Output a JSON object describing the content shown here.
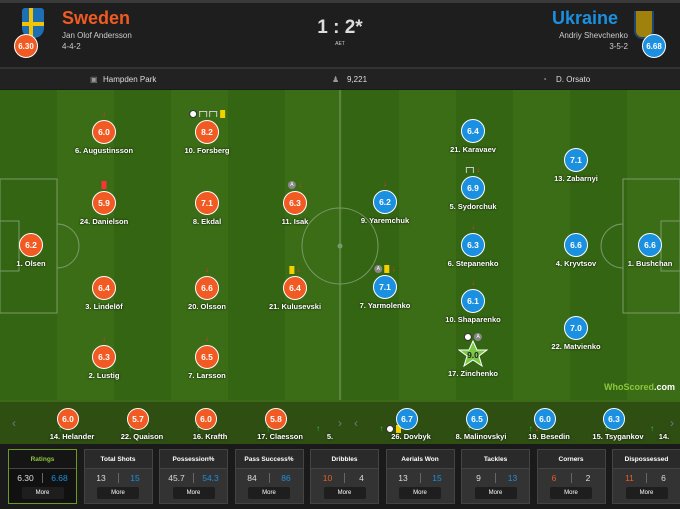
{
  "colors": {
    "home": "#f15a22",
    "away": "#1b8fe0",
    "motm": "#7ac943",
    "positive": "#f15a22",
    "ukraine_stat": "#1b8fe0"
  },
  "match": {
    "score": "1 : 2*",
    "note": "AET"
  },
  "home": {
    "name": "Sweden",
    "manager": "Jan Olof Andersson",
    "formation": "4-4-2",
    "rating": "6.30"
  },
  "away": {
    "name": "Ukraine",
    "manager": "Andriy Shevchenko",
    "formation": "3-5-2",
    "rating": "6.68"
  },
  "info": {
    "venue": "Hampden Park",
    "attendance": "9,221",
    "referee": "D. Orsato",
    "venue_icon": "stadium-icon",
    "attendance_icon": "crowd-icon",
    "referee_icon": "whistle-icon"
  },
  "home_players": [
    {
      "name": "6. Augustinsson",
      "rating": "6.0",
      "events": [
        "sub-off"
      ]
    },
    {
      "name": "10. Forsberg",
      "rating": "8.2",
      "events": [
        "goal",
        "woodwork",
        "woodwork",
        "yellow-card"
      ]
    },
    {
      "name": "24. Danielson",
      "rating": "5.9",
      "events": [
        "red-card"
      ]
    },
    {
      "name": "8. Ekdal",
      "rating": "7.1",
      "events": []
    },
    {
      "name": "11. Isak",
      "rating": "6.3",
      "events": [
        "assist",
        "sub-off"
      ]
    },
    {
      "name": "1. Olsen",
      "rating": "6.2",
      "events": []
    },
    {
      "name": "3. Lindelöf",
      "rating": "6.4",
      "events": []
    },
    {
      "name": "20. Olsson",
      "rating": "6.6",
      "events": [
        "sub-off"
      ]
    },
    {
      "name": "21. Kulusevski",
      "rating": "6.4",
      "events": [
        "yellow-card",
        "sub-off"
      ]
    },
    {
      "name": "2. Lustig",
      "rating": "6.3",
      "events": [
        "sub-off"
      ]
    },
    {
      "name": "7. Larsson",
      "rating": "6.5",
      "events": [
        "sub-off"
      ]
    }
  ],
  "away_players": [
    {
      "name": "21. Karavaev",
      "rating": "6.4",
      "events": []
    },
    {
      "name": "13. Zabarnyi",
      "rating": "7.1",
      "events": []
    },
    {
      "name": "5. Sydorchuk",
      "rating": "6.9",
      "events": [
        "woodwork",
        "sub-off"
      ]
    },
    {
      "name": "9. Yaremchuk",
      "rating": "6.2",
      "events": [
        "sub-off"
      ]
    },
    {
      "name": "6. Stepanenko",
      "rating": "6.3",
      "events": [
        "sub-off"
      ]
    },
    {
      "name": "4. Kryvtsov",
      "rating": "6.6",
      "events": []
    },
    {
      "name": "1. Bushchan",
      "rating": "6.6",
      "events": []
    },
    {
      "name": "7. Yarmolenko",
      "rating": "7.1",
      "events": [
        "assist",
        "yellow-card",
        "sub-off"
      ]
    },
    {
      "name": "10. Shaparenko",
      "rating": "6.1",
      "events": [
        "sub-off"
      ]
    },
    {
      "name": "22. Matvienko",
      "rating": "7.0",
      "events": []
    },
    {
      "name": "17. Zinchenko",
      "rating": "9.0",
      "events": [
        "goal",
        "assist"
      ],
      "man_of_the_match": true
    }
  ],
  "home_subs": [
    {
      "name": "14. Helander",
      "rating": "6.0",
      "events": [
        "sub-on"
      ]
    },
    {
      "name": "22. Quaison",
      "rating": "5.7",
      "events": [
        "sub-on"
      ]
    },
    {
      "name": "16. Krafth",
      "rating": "6.0",
      "events": [
        "sub-on"
      ]
    },
    {
      "name": "17. Claesson",
      "rating": "5.8",
      "events": [
        "sub-on"
      ]
    },
    {
      "name": "5.",
      "rating": "",
      "events": [
        "sub-on"
      ]
    }
  ],
  "away_subs": [
    {
      "name": "26. Dovbyk",
      "rating": "6.7",
      "events": [
        "sub-on",
        "goal",
        "yellow-card"
      ]
    },
    {
      "name": "8. Malinovskyi",
      "rating": "6.5",
      "events": [
        "sub-on"
      ]
    },
    {
      "name": "19. Besedin",
      "rating": "6.0",
      "events": [
        "sub-on",
        "sub-off"
      ]
    },
    {
      "name": "15. Tsygankov",
      "rating": "6.3",
      "events": [
        "sub-on"
      ]
    },
    {
      "name": "14.",
      "rating": "",
      "events": [
        "sub-on"
      ]
    }
  ],
  "branding": {
    "logo_a": "WhoScored",
    "logo_b": ".com"
  },
  "stats": [
    {
      "label": "Ratings",
      "home": "6.30",
      "away": "6.68",
      "more": "More",
      "selected": true,
      "leader": "away"
    },
    {
      "label": "Total Shots",
      "home": "13",
      "away": "15",
      "more": "More",
      "leader": "away"
    },
    {
      "label": "Possession%",
      "home": "45.7",
      "away": "54.3",
      "more": "More",
      "leader": "away"
    },
    {
      "label": "Pass Success%",
      "home": "84",
      "away": "86",
      "more": "More",
      "leader": "away"
    },
    {
      "label": "Dribbles",
      "home": "10",
      "away": "4",
      "more": "More",
      "leader": "home"
    },
    {
      "label": "Aerials Won",
      "home": "13",
      "away": "15",
      "more": "More",
      "leader": "away"
    },
    {
      "label": "Tackles",
      "home": "9",
      "away": "13",
      "more": "More",
      "leader": "away"
    },
    {
      "label": "Corners",
      "home": "6",
      "away": "2",
      "more": "More",
      "leader": "home"
    },
    {
      "label": "Dispossessed",
      "home": "11",
      "away": "6",
      "more": "More",
      "leader": "home"
    }
  ]
}
